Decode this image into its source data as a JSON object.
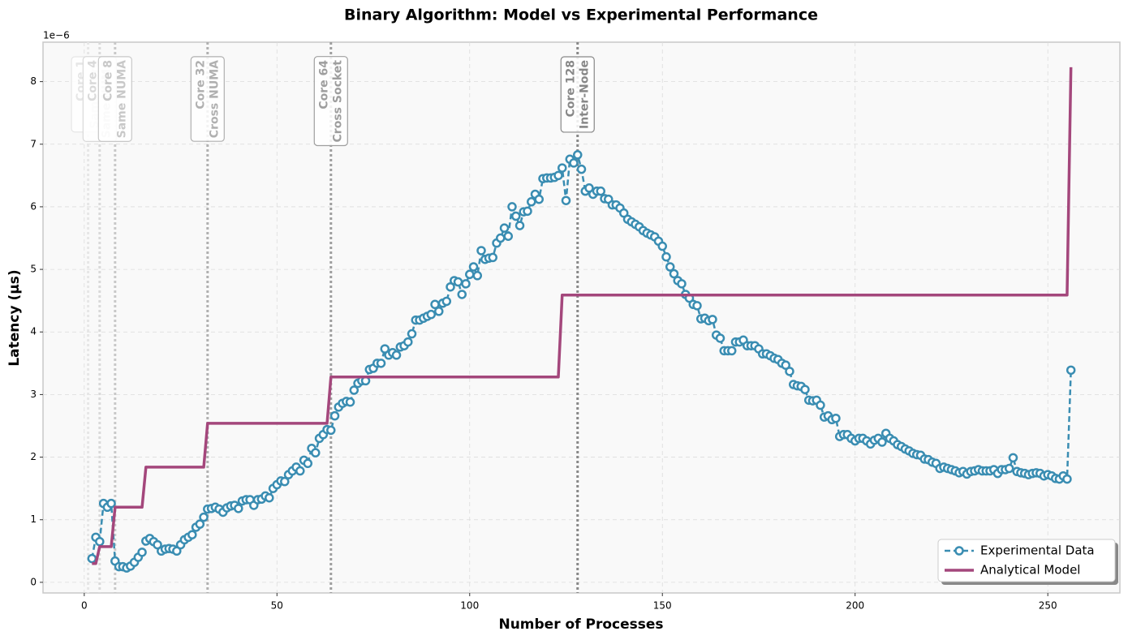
{
  "chart_data": {
    "type": "line",
    "title": "Binary Algorithm: Model vs Experimental Performance",
    "x_label": "Number of Processes",
    "y_label": "Latency (µs)",
    "y_offset_label": "1e−6",
    "xlim": [
      -10.7,
      268.7
    ],
    "ylim": [
      -0.17,
      8.63
    ],
    "xticks": [
      0,
      50,
      100,
      150,
      200,
      250
    ],
    "yticks": [
      0,
      1,
      2,
      3,
      4,
      5,
      6,
      7,
      8
    ],
    "grid": true,
    "legend": "lower right",
    "x": [
      2,
      3,
      4,
      5,
      6,
      7,
      8,
      9,
      10,
      11,
      12,
      13,
      14,
      15,
      16,
      17,
      18,
      19,
      20,
      21,
      22,
      23,
      24,
      25,
      26,
      27,
      28,
      29,
      30,
      31,
      32,
      33,
      34,
      35,
      36,
      37,
      38,
      39,
      40,
      41,
      42,
      43,
      44,
      45,
      46,
      47,
      48,
      49,
      50,
      51,
      52,
      53,
      54,
      55,
      56,
      57,
      58,
      59,
      60,
      61,
      62,
      63,
      64,
      65,
      66,
      67,
      68,
      69,
      70,
      71,
      72,
      73,
      74,
      75,
      76,
      77,
      78,
      79,
      80,
      81,
      82,
      83,
      84,
      85,
      86,
      87,
      88,
      89,
      90,
      91,
      92,
      93,
      94,
      95,
      96,
      97,
      98,
      99,
      100,
      101,
      102,
      103,
      104,
      105,
      106,
      107,
      108,
      109,
      110,
      111,
      112,
      113,
      114,
      115,
      116,
      117,
      118,
      119,
      120,
      121,
      122,
      123,
      124,
      125,
      126,
      127,
      128,
      129,
      130,
      131,
      132,
      133,
      134,
      135,
      136,
      137,
      138,
      139,
      140,
      141,
      142,
      143,
      144,
      145,
      146,
      147,
      148,
      149,
      150,
      151,
      152,
      153,
      154,
      155,
      156,
      157,
      158,
      159,
      160,
      161,
      162,
      163,
      164,
      165,
      166,
      167,
      168,
      169,
      170,
      171,
      172,
      173,
      174,
      175,
      176,
      177,
      178,
      179,
      180,
      181,
      182,
      183,
      184,
      185,
      186,
      187,
      188,
      189,
      190,
      191,
      192,
      193,
      194,
      195,
      196,
      197,
      198,
      199,
      200,
      201,
      202,
      203,
      204,
      205,
      206,
      207,
      208,
      209,
      210,
      211,
      212,
      213,
      214,
      215,
      216,
      217,
      218,
      219,
      220,
      221,
      222,
      223,
      224,
      225,
      226,
      227,
      228,
      229,
      230,
      231,
      232,
      233,
      234,
      235,
      236,
      237,
      238,
      239,
      240,
      241,
      242,
      243,
      244,
      245,
      246,
      247,
      248,
      249,
      250,
      251,
      252,
      253,
      254,
      255,
      256
    ],
    "series": [
      {
        "name": "Experimental Data",
        "color": "#3a8db2",
        "linestyle": "dashed",
        "marker": "o",
        "linewidth": 2.5,
        "values": [
          0.38,
          0.72,
          0.65,
          1.26,
          1.2,
          1.26,
          0.34,
          0.25,
          0.25,
          0.23,
          0.26,
          0.32,
          0.4,
          0.48,
          0.66,
          0.7,
          0.65,
          0.6,
          0.5,
          0.53,
          0.54,
          0.53,
          0.5,
          0.6,
          0.68,
          0.72,
          0.76,
          0.88,
          0.93,
          1.04,
          1.17,
          1.18,
          1.2,
          1.17,
          1.12,
          1.19,
          1.22,
          1.23,
          1.18,
          1.3,
          1.32,
          1.32,
          1.23,
          1.32,
          1.33,
          1.38,
          1.35,
          1.5,
          1.56,
          1.62,
          1.61,
          1.72,
          1.78,
          1.84,
          1.78,
          1.95,
          1.9,
          2.14,
          2.07,
          2.3,
          2.36,
          2.44,
          2.43,
          2.66,
          2.8,
          2.86,
          2.89,
          2.88,
          3.07,
          3.18,
          3.22,
          3.22,
          3.4,
          3.42,
          3.5,
          3.5,
          3.73,
          3.63,
          3.67,
          3.63,
          3.76,
          3.78,
          3.84,
          3.97,
          4.19,
          4.19,
          4.22,
          4.25,
          4.28,
          4.44,
          4.33,
          4.46,
          4.49,
          4.72,
          4.82,
          4.8,
          4.6,
          4.77,
          4.92,
          5.04,
          4.9,
          5.3,
          5.16,
          5.18,
          5.19,
          5.42,
          5.5,
          5.66,
          5.53,
          6.0,
          5.85,
          5.7,
          5.92,
          5.93,
          6.08,
          6.2,
          6.12,
          6.45,
          6.46,
          6.46,
          6.47,
          6.5,
          6.62,
          6.1,
          6.76,
          6.7,
          6.83,
          6.6,
          6.25,
          6.3,
          6.2,
          6.25,
          6.25,
          6.13,
          6.12,
          6.03,
          6.03,
          5.98,
          5.9,
          5.8,
          5.76,
          5.72,
          5.68,
          5.62,
          5.58,
          5.55,
          5.52,
          5.45,
          5.37,
          5.2,
          5.04,
          4.93,
          4.82,
          4.77,
          4.6,
          4.54,
          4.44,
          4.42,
          4.21,
          4.22,
          4.18,
          4.2,
          3.95,
          3.9,
          3.7,
          3.7,
          3.7,
          3.84,
          3.84,
          3.87,
          3.78,
          3.78,
          3.78,
          3.73,
          3.65,
          3.65,
          3.62,
          3.58,
          3.56,
          3.5,
          3.47,
          3.37,
          3.16,
          3.14,
          3.13,
          3.08,
          2.91,
          2.9,
          2.91,
          2.83,
          2.64,
          2.66,
          2.6,
          2.62,
          2.33,
          2.36,
          2.36,
          2.3,
          2.26,
          2.3,
          2.3,
          2.26,
          2.21,
          2.27,
          2.3,
          2.24,
          2.38,
          2.3,
          2.26,
          2.2,
          2.17,
          2.13,
          2.1,
          2.06,
          2.04,
          2.03,
          1.97,
          1.96,
          1.92,
          1.9,
          1.82,
          1.84,
          1.82,
          1.8,
          1.78,
          1.75,
          1.77,
          1.73,
          1.77,
          1.78,
          1.8,
          1.78,
          1.78,
          1.78,
          1.8,
          1.74,
          1.8,
          1.8,
          1.82,
          1.99,
          1.77,
          1.75,
          1.74,
          1.72,
          1.74,
          1.75,
          1.74,
          1.7,
          1.72,
          1.7,
          1.66,
          1.65,
          1.7,
          1.65,
          3.39
        ]
      },
      {
        "name": "Analytical Model",
        "color": "#a4477c",
        "linestyle": "solid",
        "linewidth": 3.5,
        "values": [
          0.3,
          0.3,
          0.57,
          0.57,
          0.57,
          0.57,
          1.2,
          1.2,
          1.2,
          1.2,
          1.2,
          1.2,
          1.2,
          1.2,
          1.84,
          1.84,
          1.84,
          1.84,
          1.84,
          1.84,
          1.84,
          1.84,
          1.84,
          1.84,
          1.84,
          1.84,
          1.84,
          1.84,
          1.84,
          1.84,
          2.54,
          2.54,
          2.54,
          2.54,
          2.54,
          2.54,
          2.54,
          2.54,
          2.54,
          2.54,
          2.54,
          2.54,
          2.54,
          2.54,
          2.54,
          2.54,
          2.54,
          2.54,
          2.54,
          2.54,
          2.54,
          2.54,
          2.54,
          2.54,
          2.54,
          2.54,
          2.54,
          2.54,
          2.54,
          2.54,
          2.54,
          2.54,
          3.28,
          3.28,
          3.28,
          3.28,
          3.28,
          3.28,
          3.28,
          3.28,
          3.28,
          3.28,
          3.28,
          3.28,
          3.28,
          3.28,
          3.28,
          3.28,
          3.28,
          3.28,
          3.28,
          3.28,
          3.28,
          3.28,
          3.28,
          3.28,
          3.28,
          3.28,
          3.28,
          3.28,
          3.28,
          3.28,
          3.28,
          3.28,
          3.28,
          3.28,
          3.28,
          3.28,
          3.28,
          3.28,
          3.28,
          3.28,
          3.28,
          3.28,
          3.28,
          3.28,
          3.28,
          3.28,
          3.28,
          3.28,
          3.28,
          3.28,
          3.28,
          3.28,
          3.28,
          3.28,
          3.28,
          3.28,
          3.28,
          3.28,
          3.28,
          3.28,
          4.59,
          4.59,
          4.59,
          4.59,
          4.59,
          4.59,
          4.59,
          4.59,
          4.59,
          4.59,
          4.59,
          4.59,
          4.59,
          4.59,
          4.59,
          4.59,
          4.59,
          4.59,
          4.59,
          4.59,
          4.59,
          4.59,
          4.59,
          4.59,
          4.59,
          4.59,
          4.59,
          4.59,
          4.59,
          4.59,
          4.59,
          4.59,
          4.59,
          4.59,
          4.59,
          4.59,
          4.59,
          4.59,
          4.59,
          4.59,
          4.59,
          4.59,
          4.59,
          4.59,
          4.59,
          4.59,
          4.59,
          4.59,
          4.59,
          4.59,
          4.59,
          4.59,
          4.59,
          4.59,
          4.59,
          4.59,
          4.59,
          4.59,
          4.59,
          4.59,
          4.59,
          4.59,
          4.59,
          4.59,
          4.59,
          4.59,
          4.59,
          4.59,
          4.59,
          4.59,
          4.59,
          4.59,
          4.59,
          4.59,
          4.59,
          4.59,
          4.59,
          4.59,
          4.59,
          4.59,
          4.59,
          4.59,
          4.59,
          4.59,
          4.59,
          4.59,
          4.59,
          4.59,
          4.59,
          4.59,
          4.59,
          4.59,
          4.59,
          4.59,
          4.59,
          4.59,
          4.59,
          4.59,
          4.59,
          4.59,
          4.59,
          4.59,
          4.59,
          4.59,
          4.59,
          4.59,
          4.59,
          4.59,
          4.59,
          4.59,
          4.59,
          4.59,
          4.59,
          4.59,
          4.59,
          4.59,
          4.59,
          4.59,
          4.59,
          4.59,
          4.59,
          4.59,
          4.59,
          4.59,
          4.59,
          4.59,
          4.59,
          4.59,
          4.59,
          4.59,
          4.59,
          4.59,
          8.23
        ]
      }
    ],
    "annotations": [
      {
        "x": 1,
        "lines": [
          "Core 1",
          "Same Core"
        ],
        "color": "#e6e6e6"
      },
      {
        "x": 4,
        "lines": [
          "Core 4",
          "Same NUMA"
        ],
        "color": "#d9d9d9"
      },
      {
        "x": 8,
        "lines": [
          "Core 8",
          "Same NUMA"
        ],
        "color": "#c8c8c8"
      },
      {
        "x": 32,
        "lines": [
          "Core 32",
          "Cross NUMA"
        ],
        "color": "#b0b0b0"
      },
      {
        "x": 64,
        "lines": [
          "Core 64",
          "Cross Socket"
        ],
        "color": "#9e9e9e"
      },
      {
        "x": 128,
        "lines": [
          "Core 128",
          "Inter-Node"
        ],
        "color": "#888888"
      }
    ]
  }
}
